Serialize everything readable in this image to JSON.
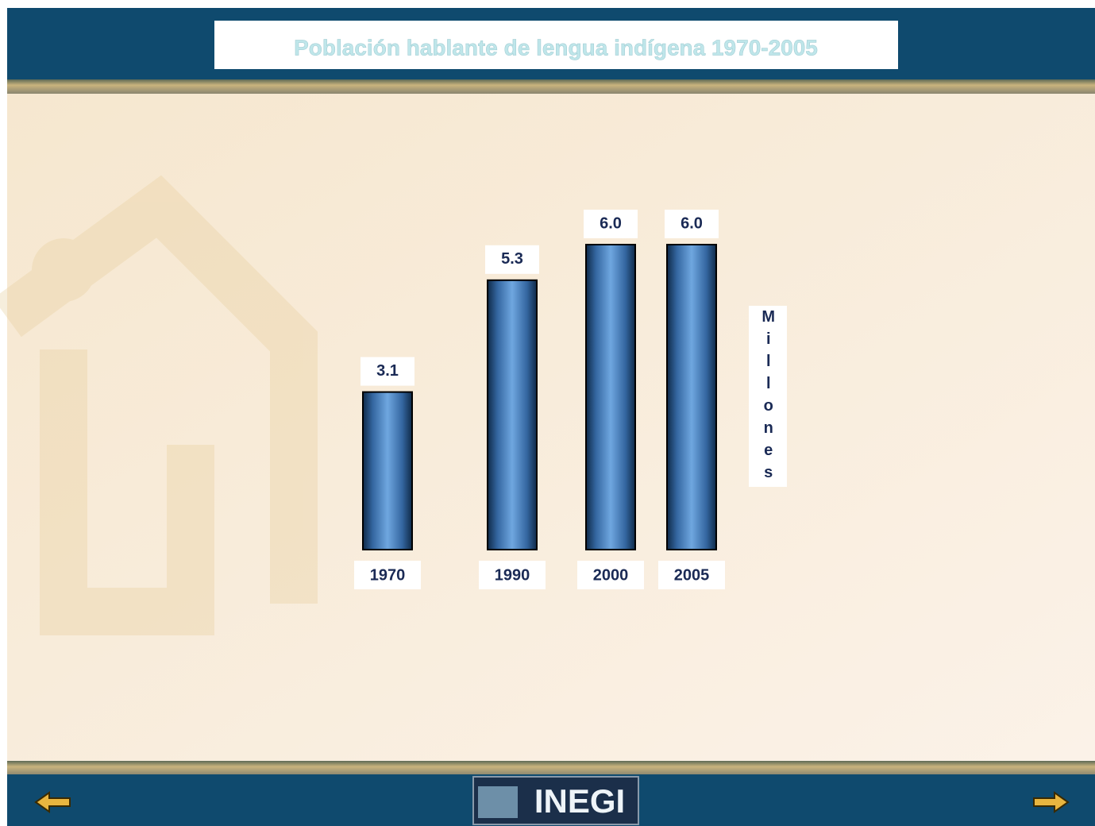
{
  "chart_data": {
    "type": "bar",
    "title": "Población hablante de lengua indígena 1970-2005",
    "categories": [
      "1970",
      "1990",
      "2000",
      "2005"
    ],
    "values": [
      3.1,
      5.3,
      6.0,
      6.0
    ],
    "value_labels": [
      "3.1",
      "5.3",
      "6.0",
      "6.0"
    ],
    "y_label": "Millones",
    "color": "#3d78b4"
  },
  "footer": {
    "logo": "INEGI"
  }
}
